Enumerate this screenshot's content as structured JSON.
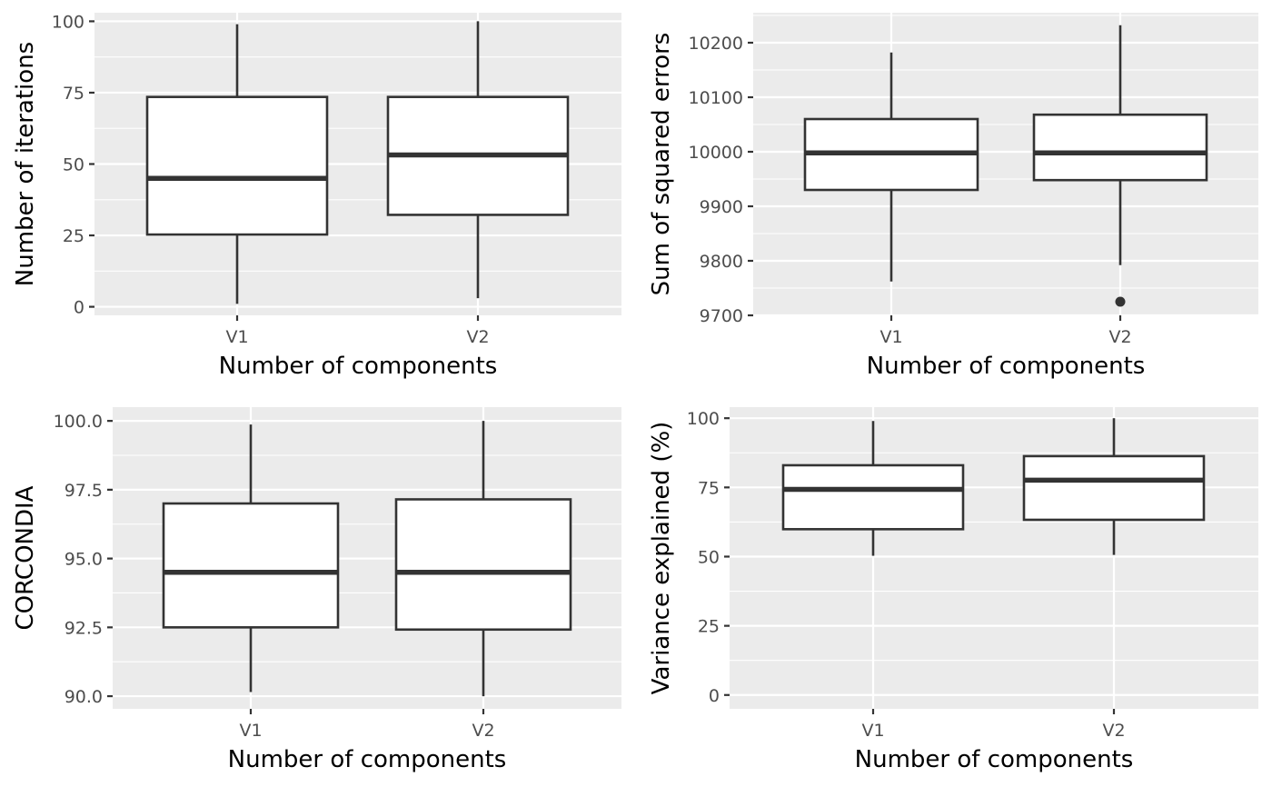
{
  "chart_data": [
    {
      "type": "boxplot",
      "categories": [
        "V1",
        "V2"
      ],
      "xlabel": "Number of components",
      "ylabel": "Number of iterations",
      "ylim": [
        -3,
        103
      ],
      "yticks": [
        0,
        25,
        50,
        75,
        100
      ],
      "ytick_labels": [
        "0",
        "25",
        "50",
        "75",
        "100"
      ],
      "grid": true,
      "boxes": [
        {
          "category": "V1",
          "min": 1,
          "q1": 25.3,
          "median": 45,
          "q3": 73.5,
          "max": 99,
          "outliers": []
        },
        {
          "category": "V2",
          "min": 3,
          "q1": 32.2,
          "median": 53.2,
          "q3": 73.5,
          "max": 100,
          "outliers": []
        }
      ]
    },
    {
      "type": "boxplot",
      "categories": [
        "V1",
        "V2"
      ],
      "xlabel": "Number of components",
      "ylabel": "Sum of squared errors",
      "ylim": [
        9700,
        10255
      ],
      "yticks": [
        9700,
        9800,
        9900,
        10000,
        10100,
        10200
      ],
      "ytick_labels": [
        "9700",
        "9800",
        "9900",
        "10000",
        "10100",
        "10200"
      ],
      "grid": true,
      "boxes": [
        {
          "category": "V1",
          "min": 9762,
          "q1": 9930,
          "median": 9998,
          "q3": 10060,
          "max": 10182,
          "outliers": []
        },
        {
          "category": "V2",
          "min": 9792,
          "q1": 9948,
          "median": 9998,
          "q3": 10068,
          "max": 10232,
          "outliers": [
            9725
          ]
        }
      ]
    },
    {
      "type": "boxplot",
      "categories": [
        "V1",
        "V2"
      ],
      "xlabel": "Number of components",
      "ylabel": "CORCONDIA",
      "ylim": [
        89.54,
        100.5
      ],
      "yticks": [
        90,
        92.5,
        95,
        97.5,
        100
      ],
      "ytick_labels": [
        "90.0",
        "92.5",
        "95.0",
        "97.5",
        "100.0"
      ],
      "grid": true,
      "boxes": [
        {
          "category": "V1",
          "min": 90.15,
          "q1": 92.5,
          "median": 94.5,
          "q3": 97.0,
          "max": 99.87,
          "outliers": []
        },
        {
          "category": "V2",
          "min": 90.0,
          "q1": 92.42,
          "median": 94.5,
          "q3": 97.15,
          "max": 100.0,
          "outliers": []
        }
      ]
    },
    {
      "type": "boxplot",
      "categories": [
        "V1",
        "V2"
      ],
      "xlabel": "Number of components",
      "ylabel": "Variance explained (%)",
      "ylim": [
        -5,
        104
      ],
      "yticks": [
        0,
        25,
        50,
        75,
        100
      ],
      "ytick_labels": [
        "0",
        "25",
        "50",
        "75",
        "100"
      ],
      "grid": true,
      "boxes": [
        {
          "category": "V1",
          "min": 50.3,
          "q1": 59.9,
          "median": 74.3,
          "q3": 83.0,
          "max": 99,
          "outliers": []
        },
        {
          "category": "V2",
          "min": 50.6,
          "q1": 63.3,
          "median": 77.6,
          "q3": 86.3,
          "max": 100,
          "outliers": []
        }
      ]
    }
  ]
}
